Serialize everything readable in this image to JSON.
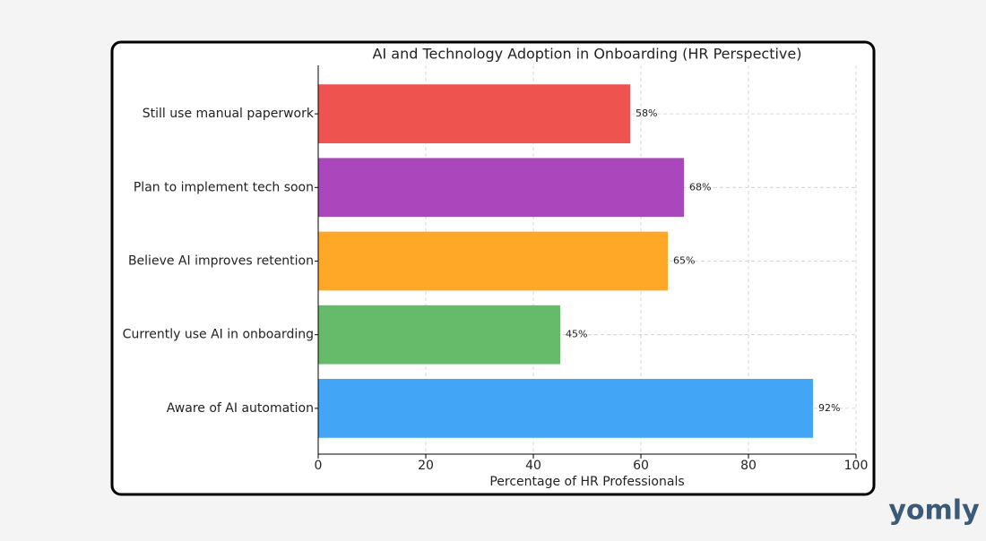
{
  "chart_data": {
    "type": "barh",
    "title": "AI and Technology Adoption in Onboarding (HR Perspective)",
    "xlabel": "Percentage of HR Professionals",
    "categories": [
      "Still use manual paperwork",
      "Plan to implement tech soon",
      "Believe AI improves retention",
      "Currently use AI in onboarding",
      "Aware of AI automation"
    ],
    "values": [
      58,
      68,
      65,
      45,
      92
    ],
    "value_labels": [
      "58%",
      "68%",
      "65%",
      "45%",
      "92%"
    ],
    "colors": [
      "#ef5350",
      "#ab47bc",
      "#ffa726",
      "#66bb6a",
      "#42a5f5"
    ],
    "xlim": [
      0,
      100
    ],
    "xticks": [
      0,
      20,
      40,
      60,
      80,
      100
    ],
    "grid": true
  },
  "logo": "yomly"
}
